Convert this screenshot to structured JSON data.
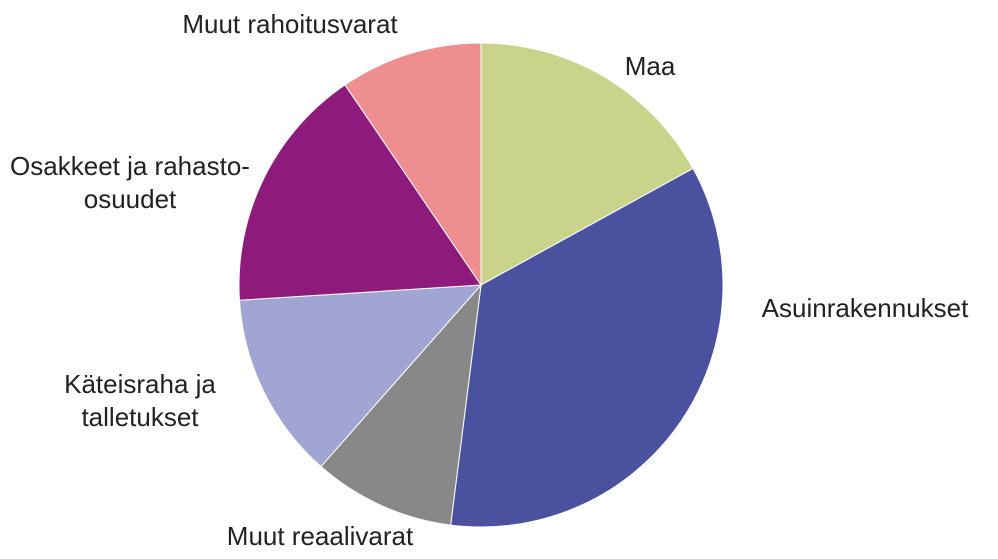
{
  "chart_data": {
    "type": "pie",
    "categories": [
      "Maa",
      "Asuinrakennukset",
      "Muut reaalivarat",
      "Käteisraha ja talletukset",
      "Osakkeet ja rahasto-osuudet",
      "Muut rahoitusvarat"
    ],
    "values": [
      17,
      35,
      9.5,
      12.5,
      16.5,
      9.5
    ],
    "colors": [
      "#c9d48a",
      "#4a52a0",
      "#888888",
      "#a0a5d4",
      "#8e1a7c",
      "#ef8e91"
    ]
  }
}
